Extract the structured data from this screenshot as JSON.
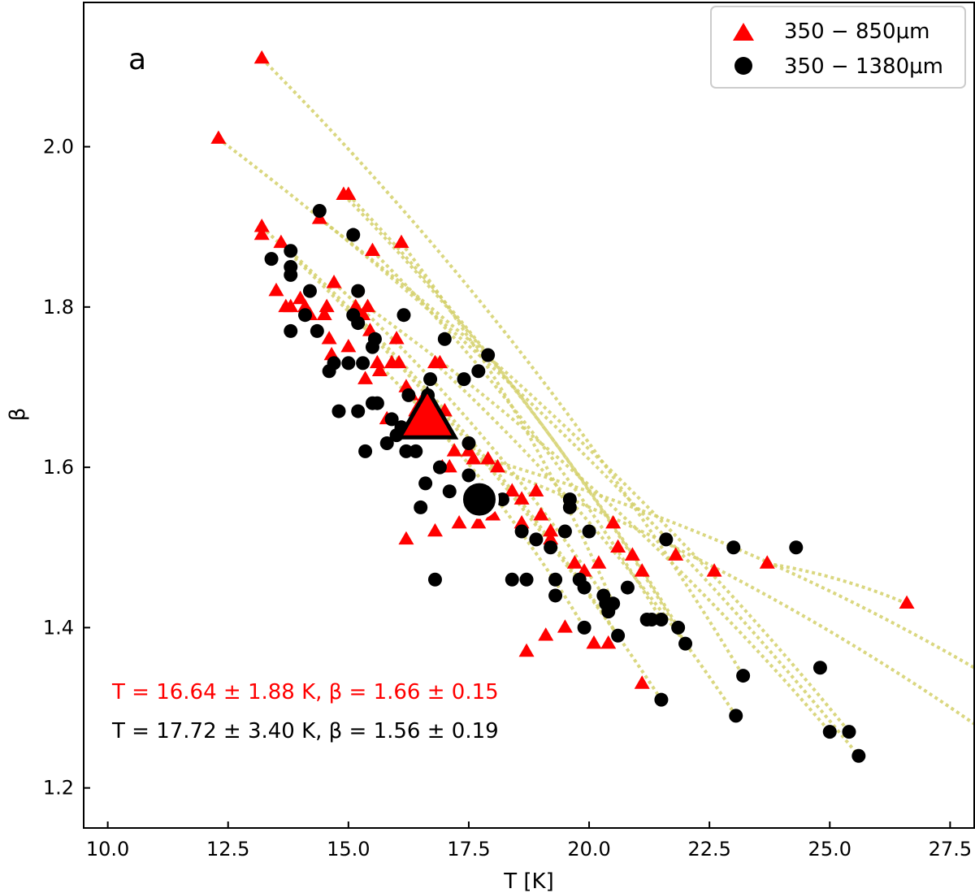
{
  "chart_data": {
    "type": "scatter",
    "panel_label": "a",
    "xlabel": "T [K]",
    "ylabel": "β",
    "xlim": [
      9.5,
      28.0
    ],
    "ylim": [
      1.15,
      2.18
    ],
    "xticks": [
      10.0,
      12.5,
      15.0,
      17.5,
      20.0,
      22.5,
      25.0,
      27.5
    ],
    "xtick_labels": [
      "10.0",
      "12.5",
      "15.0",
      "17.5",
      "20.0",
      "22.5",
      "25.0",
      "27.5"
    ],
    "yticks": [
      1.2,
      1.4,
      1.6,
      1.8,
      2.0
    ],
    "ytick_labels": [
      "1.2",
      "1.4",
      "1.6",
      "1.8",
      "2.0"
    ],
    "legend": {
      "position": "top-right",
      "entries": [
        {
          "label": "350 − 850μm",
          "marker": "triangle",
          "color": "#ff0000"
        },
        {
          "label": "350 − 1380μm",
          "marker": "circle",
          "color": "#000000"
        }
      ]
    },
    "colors": {
      "red": "#ff0000",
      "black": "#000000",
      "link": "#d4d06a"
    },
    "series": [
      {
        "name": "350 − 850μm",
        "marker": "triangle",
        "color": "#ff0000",
        "points": [
          [
            12.3,
            2.01
          ],
          [
            13.2,
            2.11
          ],
          [
            13.2,
            1.9
          ],
          [
            13.2,
            1.89
          ],
          [
            13.6,
            1.88
          ],
          [
            13.5,
            1.82
          ],
          [
            13.7,
            1.8
          ],
          [
            13.8,
            1.8
          ],
          [
            14.0,
            1.81
          ],
          [
            14.1,
            1.8
          ],
          [
            14.2,
            1.79
          ],
          [
            14.4,
            1.91
          ],
          [
            14.5,
            1.79
          ],
          [
            14.55,
            1.8
          ],
          [
            14.6,
            1.76
          ],
          [
            14.7,
            1.83
          ],
          [
            14.65,
            1.74
          ],
          [
            14.9,
            1.94
          ],
          [
            15.0,
            1.94
          ],
          [
            15.0,
            1.75
          ],
          [
            15.15,
            1.8
          ],
          [
            15.3,
            1.79
          ],
          [
            15.35,
            1.71
          ],
          [
            15.4,
            1.8
          ],
          [
            15.45,
            1.77
          ],
          [
            15.5,
            1.87
          ],
          [
            15.6,
            1.73
          ],
          [
            15.65,
            1.72
          ],
          [
            15.8,
            1.66
          ],
          [
            15.9,
            1.73
          ],
          [
            16.0,
            1.76
          ],
          [
            16.05,
            1.73
          ],
          [
            16.1,
            1.88
          ],
          [
            16.2,
            1.7
          ],
          [
            16.3,
            1.69
          ],
          [
            16.4,
            1.67
          ],
          [
            16.5,
            1.68
          ],
          [
            16.65,
            1.66
          ],
          [
            16.8,
            1.73
          ],
          [
            16.9,
            1.73
          ],
          [
            16.95,
            1.6
          ],
          [
            17.1,
            1.6
          ],
          [
            17.2,
            1.62
          ],
          [
            17.5,
            1.62
          ],
          [
            17.6,
            1.61
          ],
          [
            17.7,
            1.53
          ],
          [
            17.9,
            1.61
          ],
          [
            18.1,
            1.6
          ],
          [
            18.4,
            1.57
          ],
          [
            18.6,
            1.56
          ],
          [
            18.7,
            1.37
          ],
          [
            18.9,
            1.57
          ],
          [
            19.0,
            1.54
          ],
          [
            19.1,
            1.39
          ],
          [
            19.2,
            1.51
          ],
          [
            19.5,
            1.4
          ],
          [
            19.7,
            1.48
          ],
          [
            19.9,
            1.47
          ],
          [
            20.1,
            1.38
          ],
          [
            20.2,
            1.48
          ],
          [
            20.4,
            1.38
          ],
          [
            20.6,
            1.5
          ],
          [
            20.9,
            1.49
          ],
          [
            21.1,
            1.33
          ],
          [
            21.1,
            1.47
          ],
          [
            21.8,
            1.49
          ],
          [
            22.6,
            1.47
          ],
          [
            23.7,
            1.48
          ],
          [
            26.6,
            1.43
          ],
          [
            16.2,
            1.51
          ],
          [
            16.8,
            1.52
          ],
          [
            17.3,
            1.53
          ],
          [
            18.0,
            1.54
          ],
          [
            18.6,
            1.53
          ],
          [
            19.2,
            1.52
          ],
          [
            20.5,
            1.53
          ],
          [
            17.0,
            1.67
          ]
        ],
        "mean": {
          "x": 16.64,
          "y": 1.66
        },
        "annotation": "T = 16.64 ± 1.88 K,  β = 1.66 ± 0.15"
      },
      {
        "name": "350 − 1380μm",
        "marker": "circle",
        "color": "#000000",
        "points": [
          [
            13.4,
            1.86
          ],
          [
            13.8,
            1.87
          ],
          [
            13.8,
            1.85
          ],
          [
            13.8,
            1.84
          ],
          [
            13.8,
            1.77
          ],
          [
            14.1,
            1.79
          ],
          [
            14.2,
            1.82
          ],
          [
            14.35,
            1.77
          ],
          [
            14.4,
            1.92
          ],
          [
            14.6,
            1.72
          ],
          [
            14.7,
            1.73
          ],
          [
            14.8,
            1.67
          ],
          [
            15.0,
            1.73
          ],
          [
            15.1,
            1.89
          ],
          [
            15.1,
            1.79
          ],
          [
            15.2,
            1.82
          ],
          [
            15.2,
            1.78
          ],
          [
            15.2,
            1.67
          ],
          [
            15.3,
            1.73
          ],
          [
            15.35,
            1.62
          ],
          [
            15.5,
            1.68
          ],
          [
            15.5,
            1.75
          ],
          [
            15.55,
            1.76
          ],
          [
            15.6,
            1.68
          ],
          [
            15.8,
            1.63
          ],
          [
            15.9,
            1.66
          ],
          [
            16.0,
            1.64
          ],
          [
            16.1,
            1.65
          ],
          [
            16.2,
            1.62
          ],
          [
            16.15,
            1.79
          ],
          [
            16.25,
            1.69
          ],
          [
            16.4,
            1.62
          ],
          [
            16.5,
            1.55
          ],
          [
            16.6,
            1.58
          ],
          [
            16.65,
            1.68
          ],
          [
            16.65,
            1.69
          ],
          [
            16.7,
            1.71
          ],
          [
            16.8,
            1.46
          ],
          [
            16.9,
            1.6
          ],
          [
            17.0,
            1.76
          ],
          [
            17.1,
            1.57
          ],
          [
            17.4,
            1.71
          ],
          [
            17.5,
            1.63
          ],
          [
            17.5,
            1.59
          ],
          [
            17.7,
            1.72
          ],
          [
            17.9,
            1.74
          ],
          [
            18.2,
            1.56
          ],
          [
            18.4,
            1.46
          ],
          [
            18.6,
            1.52
          ],
          [
            18.7,
            1.46
          ],
          [
            18.9,
            1.51
          ],
          [
            19.2,
            1.5
          ],
          [
            19.3,
            1.46
          ],
          [
            19.3,
            1.44
          ],
          [
            19.5,
            1.52
          ],
          [
            19.6,
            1.56
          ],
          [
            19.6,
            1.55
          ],
          [
            19.8,
            1.46
          ],
          [
            19.9,
            1.4
          ],
          [
            19.9,
            1.45
          ],
          [
            20.0,
            1.52
          ],
          [
            20.3,
            1.44
          ],
          [
            20.35,
            1.43
          ],
          [
            20.4,
            1.42
          ],
          [
            20.5,
            1.43
          ],
          [
            20.6,
            1.39
          ],
          [
            20.8,
            1.45
          ],
          [
            21.2,
            1.41
          ],
          [
            21.3,
            1.41
          ],
          [
            21.5,
            1.41
          ],
          [
            21.5,
            1.31
          ],
          [
            21.6,
            1.51
          ],
          [
            21.85,
            1.4
          ],
          [
            22.0,
            1.38
          ],
          [
            23.0,
            1.5
          ],
          [
            23.05,
            1.29
          ],
          [
            23.2,
            1.34
          ],
          [
            24.3,
            1.5
          ],
          [
            24.8,
            1.35
          ],
          [
            25.0,
            1.27
          ],
          [
            25.4,
            1.27
          ],
          [
            25.6,
            1.24
          ]
        ],
        "mean": {
          "x": 17.72,
          "y": 1.56
        },
        "annotation": "T = 17.72 ± 3.40 K,  β = 1.56 ± 0.19"
      }
    ],
    "linked_pairs": [
      {
        "from": [
          12.3,
          2.01
        ],
        "to": [
          25.6,
          1.24
        ]
      },
      {
        "from": [
          13.2,
          2.11
        ],
        "to": [
          23.2,
          1.34
        ]
      },
      {
        "from": [
          13.2,
          1.9
        ],
        "to": [
          21.5,
          1.31
        ]
      },
      {
        "from": [
          14.9,
          1.94
        ],
        "to": [
          21.85,
          1.4
        ]
      },
      {
        "from": [
          15.0,
          1.94
        ],
        "to": [
          22.0,
          1.38
        ]
      },
      {
        "from": [
          15.5,
          1.87
        ],
        "to": [
          21.5,
          1.41
        ]
      },
      {
        "from": [
          16.1,
          1.88
        ],
        "to": [
          20.5,
          1.43
        ]
      },
      {
        "from": [
          14.4,
          1.91
        ],
        "to": [
          25.4,
          1.27
        ]
      },
      {
        "from": [
          15.4,
          1.8
        ],
        "to": [
          25.0,
          1.27
        ]
      },
      {
        "from": [
          16.8,
          1.73
        ],
        "to": [
          23.05,
          1.29
        ]
      },
      {
        "from": [
          17.9,
          1.61
        ],
        "to": [
          28.0,
          1.35
        ]
      },
      {
        "from": [
          17.6,
          1.61
        ],
        "to": [
          28.0,
          1.28
        ]
      },
      {
        "from": [
          23.7,
          1.48
        ],
        "to": [
          26.6,
          1.43
        ]
      },
      {
        "from": [
          13.6,
          1.88
        ],
        "to": [
          20.6,
          1.39
        ]
      },
      {
        "from": [
          14.7,
          1.83
        ],
        "to": [
          20.3,
          1.44
        ]
      },
      {
        "from": [
          15.6,
          1.73
        ],
        "to": [
          19.9,
          1.4
        ]
      }
    ]
  }
}
